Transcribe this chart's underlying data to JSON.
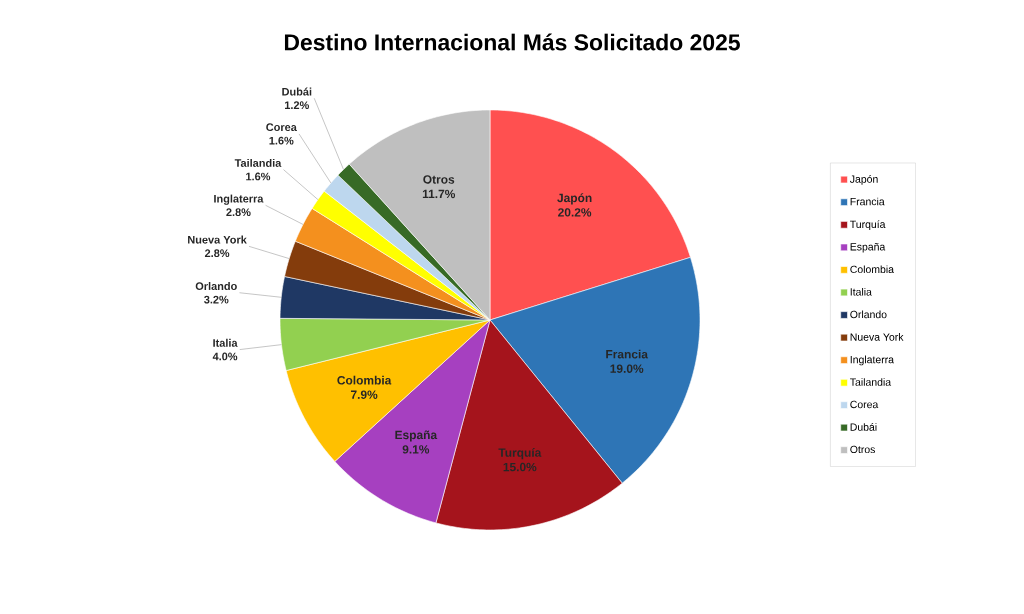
{
  "chart_data": {
    "type": "pie",
    "title": "Destino Internacional Más Solicitado 2025",
    "categories": [
      "Japón",
      "Francia",
      "Turquía",
      "España",
      "Colombia",
      "Italia",
      "Orlando",
      "Nueva York",
      "Inglaterra",
      "Tailandia",
      "Corea",
      "Dubái",
      "Otros"
    ],
    "values": [
      20.2,
      19.0,
      15.0,
      9.1,
      7.9,
      4.0,
      3.2,
      2.8,
      2.8,
      1.6,
      1.6,
      1.2,
      11.7
    ],
    "value_labels": [
      "20.2%",
      "19.0%",
      "15.0%",
      "9.1%",
      "7.9%",
      "4.0%",
      "3.2%",
      "2.8%",
      "2.8%",
      "1.6%",
      "1.6%",
      "1.2%",
      "11.7%"
    ],
    "colors": [
      "#ff5050",
      "#2e75b6",
      "#a5141c",
      "#a640c0",
      "#ffc000",
      "#92d050",
      "#1f3864",
      "#843c0c",
      "#f4901e",
      "#ffff00",
      "#bdd7ee",
      "#376a26",
      "#bfbfbf"
    ],
    "legend": "right"
  }
}
